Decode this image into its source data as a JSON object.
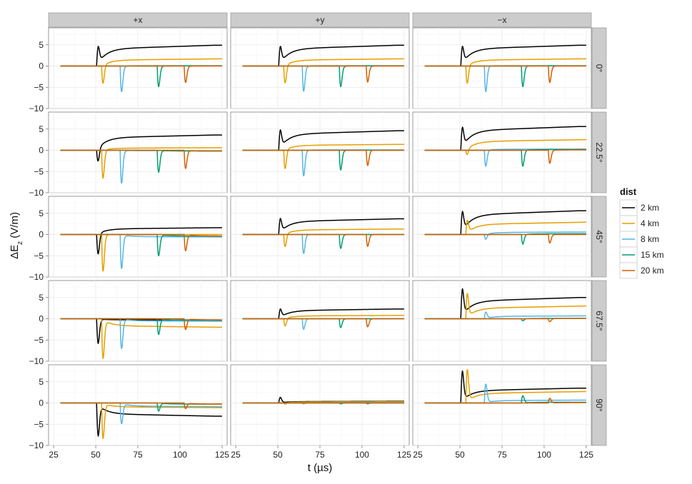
{
  "chart_data": {
    "type": "line",
    "ylabel": "ΔE",
    "ylabel_sub": "z",
    "ylabel_unit": " (V/m)",
    "xlabel": "t  (µs)",
    "xlim": [
      22,
      128
    ],
    "ylim": [
      -10,
      9
    ],
    "xticks": [
      25,
      50,
      75,
      100,
      125
    ],
    "yticks": [
      5,
      0,
      -5,
      -10
    ],
    "columns": [
      "+x",
      "+y",
      "−x"
    ],
    "rows": [
      "0°",
      "22.5°",
      "45°",
      "67.5°",
      "90°"
    ],
    "legend": {
      "title": "dist",
      "items": [
        {
          "label": "2 km",
          "color": "#000000"
        },
        {
          "label": "4 km",
          "color": "#E69F00"
        },
        {
          "label": "8 km",
          "color": "#56B4E9"
        },
        {
          "label": "15 km",
          "color": "#009E73"
        },
        {
          "label": "20 km",
          "color": "#D55E00"
        }
      ]
    },
    "series_defs": [
      {
        "name": "2 km",
        "color": "#000000",
        "t_start": 50.6
      },
      {
        "name": "4 km",
        "color": "#E69F00",
        "t_start": 53.5
      },
      {
        "name": "8 km",
        "color": "#56B4E9",
        "t_start": 64.5
      },
      {
        "name": "15 km",
        "color": "#009E73",
        "t_start": 86.5
      },
      {
        "name": "20 km",
        "color": "#D55E00",
        "t_start": 102.5
      }
    ],
    "note": "Per panel, for each series: [early extremum, late offset at t=125] in V/m",
    "panels": [
      [
        [
          [
            4.0,
            4.9
          ],
          [
            -4.3,
            1.7
          ],
          [
            -6.1,
            0.1
          ],
          [
            -4.9,
            0.05
          ],
          [
            -3.9,
            0.0
          ]
        ],
        [
          [
            4.0,
            4.9
          ],
          [
            -4.2,
            1.7
          ],
          [
            -6.0,
            0.1
          ],
          [
            -4.9,
            0.05
          ],
          [
            -3.8,
            0.0
          ]
        ],
        [
          [
            4.0,
            4.9
          ],
          [
            -4.3,
            1.7
          ],
          [
            -6.1,
            0.1
          ],
          [
            -4.9,
            0.05
          ],
          [
            -3.9,
            0.0
          ]
        ]
      ],
      [
        [
          [
            -3.0,
            3.6
          ],
          [
            -6.7,
            0.6
          ],
          [
            -7.8,
            -0.1
          ],
          [
            -5.2,
            -0.2
          ],
          [
            -4.3,
            -0.2
          ]
        ],
        [
          [
            4.2,
            4.6
          ],
          [
            -4.5,
            1.4
          ],
          [
            -6.1,
            0.1
          ],
          [
            -4.7,
            0.0
          ],
          [
            -3.6,
            0.0
          ]
        ],
        [
          [
            4.7,
            5.6
          ],
          [
            -1.3,
            2.5
          ],
          [
            -3.8,
            0.3
          ],
          [
            -3.8,
            0.2
          ],
          [
            -3.1,
            0.1
          ]
        ]
      ],
      [
        [
          [
            -4.8,
            1.6
          ],
          [
            -8.7,
            0.0
          ],
          [
            -8.0,
            -0.6
          ],
          [
            -5.0,
            -0.4
          ],
          [
            -3.8,
            -0.4
          ]
        ],
        [
          [
            3.3,
            3.7
          ],
          [
            -3.0,
            1.3
          ],
          [
            -4.5,
            0.0
          ],
          [
            -3.3,
            0.0
          ],
          [
            -2.8,
            0.0
          ]
        ],
        [
          [
            4.7,
            5.6
          ],
          [
            3.0,
            2.9
          ],
          [
            -1.2,
            0.6
          ],
          [
            -2.3,
            0.2
          ],
          [
            -2.0,
            0.0
          ]
        ]
      ],
      [
        [
          [
            -5.8,
            -0.3
          ],
          [
            -9.2,
            -2.0
          ],
          [
            -7.0,
            -0.6
          ],
          [
            -3.7,
            -0.4
          ],
          [
            -2.5,
            -0.3
          ]
        ],
        [
          [
            2.0,
            2.3
          ],
          [
            -1.8,
            0.8
          ],
          [
            -2.5,
            0.0
          ],
          [
            -2.1,
            0.0
          ],
          [
            -1.9,
            0.0
          ]
        ],
        [
          [
            6.4,
            5.0
          ],
          [
            5.6,
            3.0
          ],
          [
            1.5,
            0.7
          ],
          [
            -0.5,
            0.1
          ],
          [
            -0.7,
            0.1
          ]
        ]
      ],
      [
        [
          [
            -7.4,
            -3.1
          ],
          [
            -8.3,
            -1.1
          ],
          [
            -4.8,
            -0.9
          ],
          [
            -1.9,
            -0.3
          ],
          [
            -1.3,
            -0.3
          ]
        ],
        [
          [
            1.3,
            0.4
          ],
          [
            -0.3,
            0.3
          ],
          [
            -0.2,
            0.1
          ],
          [
            -0.2,
            0.0
          ],
          [
            -0.2,
            0.0
          ]
        ],
        [
          [
            7.1,
            3.5
          ],
          [
            7.6,
            2.7
          ],
          [
            4.4,
            0.7
          ],
          [
            1.7,
            0.2
          ],
          [
            1.1,
            0.1
          ]
        ]
      ]
    ]
  }
}
